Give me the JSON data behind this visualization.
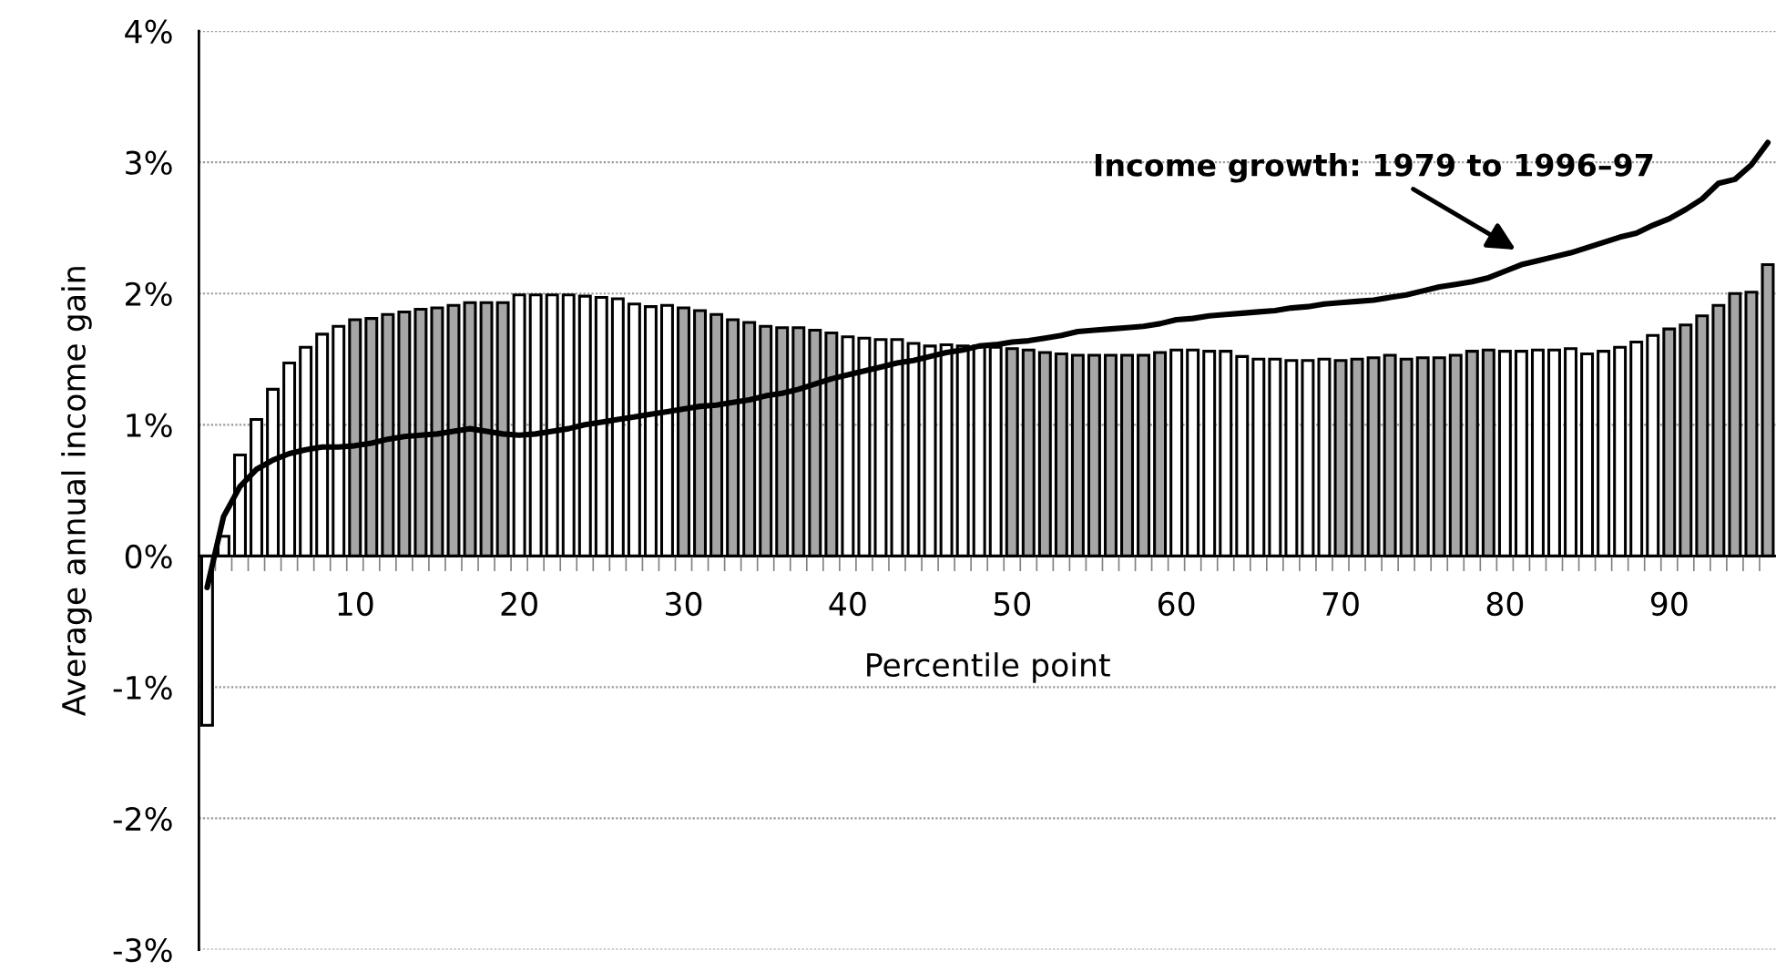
{
  "chart_data": {
    "type": "bar",
    "xlabel": "Percentile point",
    "ylabel": "Average annual income gain",
    "categories": [
      null,
      null,
      null,
      null,
      null,
      null,
      null,
      null,
      null,
      "10",
      null,
      null,
      null,
      null,
      null,
      null,
      null,
      null,
      null,
      "20",
      null,
      null,
      null,
      null,
      null,
      null,
      null,
      null,
      null,
      "30",
      null,
      null,
      null,
      null,
      null,
      null,
      null,
      null,
      null,
      "40",
      null,
      null,
      null,
      null,
      null,
      null,
      null,
      null,
      null,
      "50",
      null,
      null,
      null,
      null,
      null,
      null,
      null,
      null,
      null,
      "60",
      null,
      null,
      null,
      null,
      null,
      null,
      null,
      null,
      null,
      "70",
      null,
      null,
      null,
      null,
      null,
      null,
      null,
      null,
      null,
      "80",
      null,
      null,
      null,
      null,
      null,
      null,
      null,
      null,
      null,
      "90",
      null,
      null,
      null,
      null,
      null,
      null
    ],
    "ylim": [
      -3,
      4
    ],
    "yticks": [
      {
        "value": -3,
        "label": "-3%"
      },
      {
        "value": -2,
        "label": "-2%"
      },
      {
        "value": -1,
        "label": "-1%"
      },
      {
        "value": 0,
        "label": "0%"
      },
      {
        "value": 1,
        "label": "1%"
      },
      {
        "value": 2,
        "label": "2%"
      },
      {
        "value": 3,
        "label": "3%"
      },
      {
        "value": 4,
        "label": "4%"
      }
    ],
    "grid": "y",
    "annotations": [
      "Income growth: 1979 to 1996–97"
    ],
    "series": [
      {
        "values": [
          -1.29,
          0.15,
          0.77,
          1.04,
          1.27,
          1.47,
          1.59,
          1.69,
          1.75,
          1.8,
          1.81,
          1.84,
          1.86,
          1.88,
          1.89,
          1.91,
          1.93,
          1.93,
          1.93,
          1.99,
          1.99,
          1.99,
          1.99,
          1.98,
          1.97,
          1.96,
          1.92,
          1.9,
          1.91,
          1.89,
          1.87,
          1.84,
          1.8,
          1.78,
          1.75,
          1.74,
          1.74,
          1.72,
          1.7,
          1.67,
          1.66,
          1.65,
          1.65,
          1.62,
          1.6,
          1.61,
          1.6,
          1.6,
          1.59,
          1.58,
          1.57,
          1.55,
          1.54,
          1.53,
          1.53,
          1.53,
          1.53,
          1.53,
          1.55,
          1.57,
          1.57,
          1.56,
          1.56,
          1.52,
          1.5,
          1.5,
          1.49,
          1.49,
          1.5,
          1.49,
          1.5,
          1.51,
          1.53,
          1.5,
          1.51,
          1.51,
          1.53,
          1.56,
          1.57,
          1.56,
          1.56,
          1.57,
          1.57,
          1.58,
          1.54,
          1.56,
          1.59,
          1.63,
          1.68,
          1.73,
          1.76,
          1.83,
          1.91,
          2.0,
          2.01,
          2.22
        ],
        "colors": [
          "#ffffff",
          "#ffffff",
          "#ffffff",
          "#ffffff",
          "#ffffff",
          "#ffffff",
          "#ffffff",
          "#ffffff",
          "#ffffff",
          "#a6a6a6",
          "#a6a6a6",
          "#a6a6a6",
          "#a6a6a6",
          "#a6a6a6",
          "#a6a6a6",
          "#a6a6a6",
          "#a6a6a6",
          "#a6a6a6",
          "#a6a6a6",
          "#ffffff",
          "#ffffff",
          "#ffffff",
          "#ffffff",
          "#ffffff",
          "#ffffff",
          "#ffffff",
          "#ffffff",
          "#ffffff",
          "#ffffff",
          "#a6a6a6",
          "#a6a6a6",
          "#a6a6a6",
          "#a6a6a6",
          "#a6a6a6",
          "#a6a6a6",
          "#a6a6a6",
          "#a6a6a6",
          "#a6a6a6",
          "#a6a6a6",
          "#ffffff",
          "#ffffff",
          "#ffffff",
          "#ffffff",
          "#ffffff",
          "#ffffff",
          "#ffffff",
          "#ffffff",
          "#ffffff",
          "#ffffff",
          "#a6a6a6",
          "#a6a6a6",
          "#a6a6a6",
          "#a6a6a6",
          "#a6a6a6",
          "#a6a6a6",
          "#a6a6a6",
          "#a6a6a6",
          "#a6a6a6",
          "#a6a6a6",
          "#ffffff",
          "#ffffff",
          "#ffffff",
          "#ffffff",
          "#ffffff",
          "#ffffff",
          "#ffffff",
          "#ffffff",
          "#ffffff",
          "#ffffff",
          "#a6a6a6",
          "#a6a6a6",
          "#a6a6a6",
          "#a6a6a6",
          "#a6a6a6",
          "#a6a6a6",
          "#a6a6a6",
          "#a6a6a6",
          "#a6a6a6",
          "#a6a6a6",
          "#ffffff",
          "#ffffff",
          "#ffffff",
          "#ffffff",
          "#ffffff",
          "#ffffff",
          "#ffffff",
          "#ffffff",
          "#ffffff",
          "#ffffff",
          "#a6a6a6",
          "#a6a6a6",
          "#a6a6a6",
          "#a6a6a6",
          "#a6a6a6",
          "#a6a6a6",
          "#a6a6a6"
        ]
      },
      {
        "type": "line",
        "color": "#000000",
        "line_style": "solid",
        "values": [
          -0.24,
          0.3,
          0.53,
          0.66,
          0.73,
          0.78,
          0.81,
          0.83,
          0.83,
          0.84,
          0.86,
          0.89,
          0.91,
          0.92,
          0.93,
          0.95,
          0.97,
          0.95,
          0.93,
          0.92,
          0.93,
          0.95,
          0.97,
          1.0,
          1.02,
          1.04,
          1.06,
          1.08,
          1.1,
          1.12,
          1.14,
          1.15,
          1.17,
          1.19,
          1.22,
          1.24,
          1.27,
          1.31,
          1.35,
          1.38,
          1.41,
          1.44,
          1.47,
          1.49,
          1.52,
          1.55,
          1.57,
          1.6,
          1.61,
          1.63,
          1.64,
          1.66,
          1.68,
          1.71,
          1.72,
          1.73,
          1.74,
          1.75,
          1.77,
          1.8,
          1.81,
          1.83,
          1.84,
          1.85,
          1.86,
          1.87,
          1.89,
          1.9,
          1.92,
          1.93,
          1.94,
          1.95,
          1.97,
          1.99,
          2.02,
          2.05,
          2.07,
          2.09,
          2.12,
          2.17,
          2.22,
          2.25,
          2.28,
          2.31,
          2.35,
          2.39,
          2.43,
          2.46,
          2.52,
          2.57,
          2.64,
          2.72,
          2.84,
          2.87,
          2.98,
          3.15
        ]
      }
    ]
  }
}
